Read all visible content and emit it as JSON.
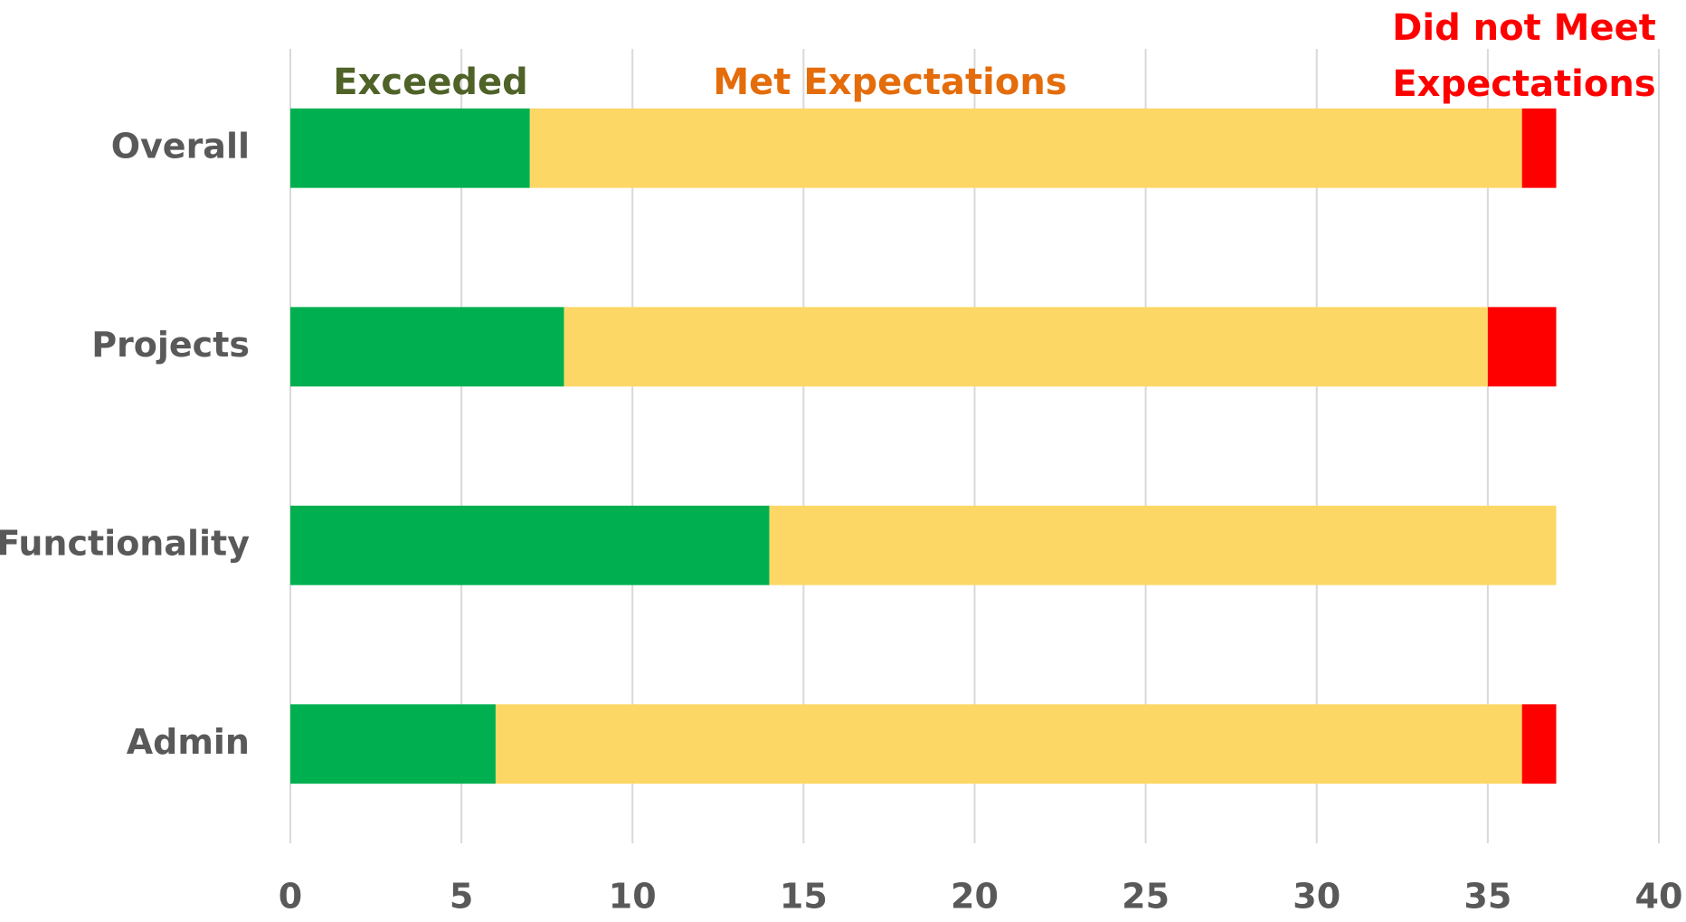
{
  "chart_data": {
    "type": "stacked_barh",
    "categories": [
      "Overall",
      "Projects",
      "Functionality",
      "Admin"
    ],
    "series": [
      {
        "name": "Exceeded",
        "color": "#00b050",
        "label_color": "#4f6228",
        "values": [
          7,
          8,
          14,
          6
        ]
      },
      {
        "name": "Met Expectations",
        "color": "#fdd766",
        "label_color": "#e46c0a",
        "values": [
          29,
          27,
          23,
          30
        ]
      },
      {
        "name": "Did not Meet Expectations",
        "color": "#ff0000",
        "label_color": "#ff0000",
        "values": [
          1,
          2,
          0,
          1
        ]
      }
    ],
    "xlim": [
      0,
      40
    ],
    "xticks": [
      0,
      5,
      10,
      15,
      20,
      25,
      30,
      35,
      40
    ],
    "grid": true
  }
}
